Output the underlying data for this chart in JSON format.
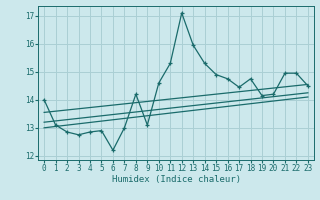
{
  "xlabel": "Humidex (Indice chaleur)",
  "bg_color": "#cce8ec",
  "grid_color": "#aacfd4",
  "line_color": "#1a6b6b",
  "xlim": [
    -0.5,
    23.5
  ],
  "ylim": [
    11.85,
    17.35
  ],
  "yticks": [
    12,
    13,
    14,
    15,
    16,
    17
  ],
  "xticks": [
    0,
    1,
    2,
    3,
    4,
    5,
    6,
    7,
    8,
    9,
    10,
    11,
    12,
    13,
    14,
    15,
    16,
    17,
    18,
    19,
    20,
    21,
    22,
    23
  ],
  "main_x": [
    0,
    1,
    2,
    3,
    4,
    5,
    6,
    7,
    8,
    9,
    10,
    11,
    12,
    13,
    14,
    15,
    16,
    17,
    18,
    19,
    20,
    21,
    22,
    23
  ],
  "main_y": [
    14.0,
    13.1,
    12.85,
    12.75,
    12.85,
    12.9,
    12.2,
    13.0,
    14.2,
    13.1,
    14.6,
    15.3,
    17.1,
    15.95,
    15.3,
    14.9,
    14.75,
    14.45,
    14.75,
    14.15,
    14.2,
    14.95,
    14.95,
    14.5
  ],
  "trend1_x": [
    0,
    23
  ],
  "trend1_y": [
    13.55,
    14.55
  ],
  "trend2_x": [
    0,
    23
  ],
  "trend2_y": [
    13.2,
    14.25
  ],
  "trend3_x": [
    0,
    23
  ],
  "trend3_y": [
    13.0,
    14.1
  ]
}
